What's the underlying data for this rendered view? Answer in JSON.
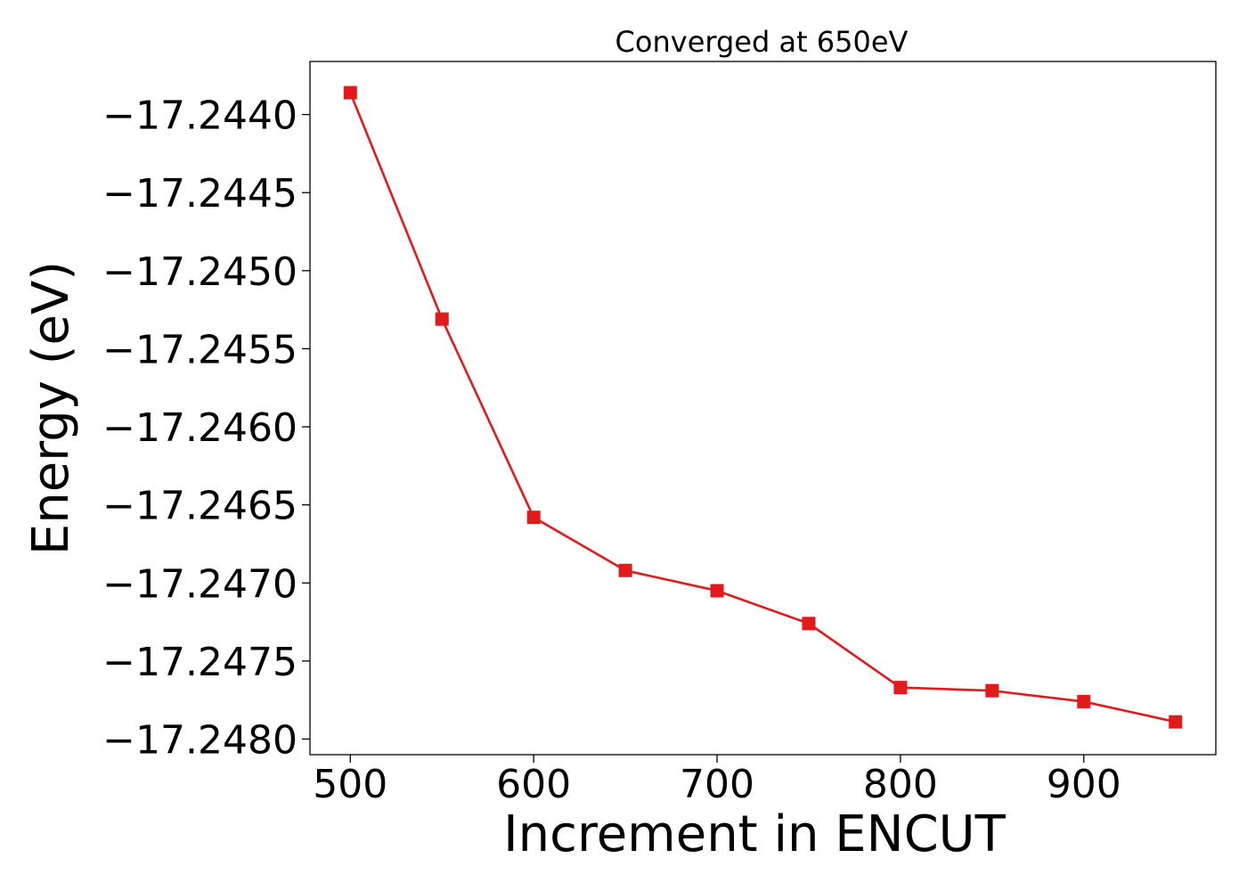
{
  "chart_data": {
    "type": "line",
    "title": "Converged at 650eV",
    "xlabel": "Increment in ENCUT",
    "ylabel": "Energy (eV)",
    "x": [
      500,
      550,
      600,
      650,
      700,
      750,
      800,
      850,
      900,
      950
    ],
    "series": [
      {
        "values": [
          -17.24386,
          -17.24531,
          -17.24658,
          -17.24692,
          -17.24705,
          -17.24726,
          -17.24767,
          -17.24769,
          -17.24776,
          -17.24789
        ],
        "color": "#e31a1c",
        "marker": "square"
      }
    ],
    "xlim": [
      478,
      972
    ],
    "ylim": [
      -17.2481,
      -17.24366
    ],
    "xticks": [
      500,
      600,
      700,
      800,
      900
    ],
    "xtick_labels": [
      "500",
      "600",
      "700",
      "800",
      "900"
    ],
    "yticks": [
      -17.244,
      -17.2445,
      -17.245,
      -17.2455,
      -17.246,
      -17.2465,
      -17.247,
      -17.2475,
      -17.248
    ],
    "ytick_labels": [
      "−17.2440",
      "−17.2445",
      "−17.2450",
      "−17.2455",
      "−17.2460",
      "−17.2465",
      "−17.2470",
      "−17.2475",
      "−17.2480"
    ],
    "grid": false,
    "legend": "none"
  }
}
